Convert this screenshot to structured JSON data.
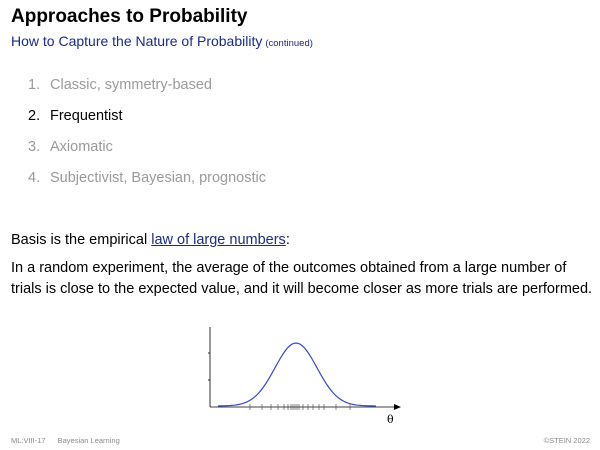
{
  "slide": {
    "title": "Approaches to Probability",
    "subtitle": "How to Capture the Nature of Probability",
    "subtitle_note": "(continued)"
  },
  "agenda": [
    {
      "num": "1.",
      "label": "Classic, symmetry-based",
      "active": false
    },
    {
      "num": "2.",
      "label": "Frequentist",
      "active": true
    },
    {
      "num": "3.",
      "label": "Axiomatic",
      "active": false
    },
    {
      "num": "4.",
      "label": "Subjectivist, Bayesian, prognostic",
      "active": false
    }
  ],
  "basis": {
    "prefix": "Basis is the empirical ",
    "link": "law of large numbers",
    "suffix": ":"
  },
  "body_text": "In a random experiment, the average of the outcomes obtained from a large number of trials is close to the expected value, and it will become closer as more trials are performed.",
  "figure": {
    "xlabel": "θ",
    "curve_color": "#3344dd",
    "curve": "normal density"
  },
  "footer": {
    "left": "ML:VIII-17",
    "section": "Bayesian Learning",
    "right": "©STEIN 2022"
  }
}
